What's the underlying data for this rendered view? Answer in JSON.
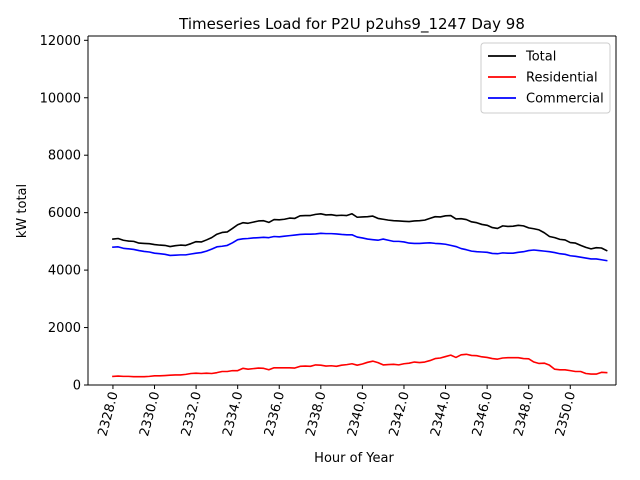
{
  "chart_data": {
    "type": "line",
    "title": "Timeseries Load for P2U p2uhs9_1247  Day 98",
    "xlabel": "Hour of Year",
    "ylabel": "kW total",
    "xlim": [
      2326.8,
      2352.2
    ],
    "ylim": [
      0,
      12150
    ],
    "xticks": [
      2328,
      2330,
      2332,
      2334,
      2336,
      2338,
      2340,
      2342,
      2344,
      2346,
      2348,
      2350
    ],
    "xtick_labels": [
      "2328.0",
      "2330.0",
      "2332.0",
      "2334.0",
      "2336.0",
      "2338.0",
      "2340.0",
      "2342.0",
      "2344.0",
      "2346.0",
      "2348.0",
      "2350.0"
    ],
    "yticks": [
      0,
      2000,
      4000,
      6000,
      8000,
      10000,
      12000
    ],
    "ytick_labels": [
      "0",
      "2000",
      "4000",
      "6000",
      "8000",
      "10000",
      "12000"
    ],
    "legend_position": "top-right",
    "x": [
      2328.0,
      2328.25,
      2328.5,
      2328.75,
      2329.0,
      2329.25,
      2329.5,
      2329.75,
      2330.0,
      2330.25,
      2330.5,
      2330.75,
      2331.0,
      2331.25,
      2331.5,
      2331.75,
      2332.0,
      2332.25,
      2332.5,
      2332.75,
      2333.0,
      2333.25,
      2333.5,
      2333.75,
      2334.0,
      2334.25,
      2334.5,
      2334.75,
      2335.0,
      2335.25,
      2335.5,
      2335.75,
      2336.0,
      2336.25,
      2336.5,
      2336.75,
      2337.0,
      2337.25,
      2337.5,
      2337.75,
      2338.0,
      2338.25,
      2338.5,
      2338.75,
      2339.0,
      2339.25,
      2339.5,
      2339.75,
      2340.0,
      2340.25,
      2340.5,
      2340.75,
      2341.0,
      2341.25,
      2341.5,
      2341.75,
      2342.0,
      2342.25,
      2342.5,
      2342.75,
      2343.0,
      2343.25,
      2343.5,
      2343.75,
      2344.0,
      2344.25,
      2344.5,
      2344.75,
      2345.0,
      2345.25,
      2345.5,
      2345.75,
      2346.0,
      2346.25,
      2346.5,
      2346.75,
      2347.0,
      2347.25,
      2347.5,
      2347.75,
      2348.0,
      2348.25,
      2348.5,
      2348.75,
      2349.0,
      2349.25,
      2349.5,
      2349.75,
      2350.0,
      2350.25,
      2350.5,
      2350.75,
      2351.0,
      2351.25,
      2351.5,
      2351.75
    ],
    "series": [
      {
        "name": "Total",
        "color": "#000000",
        "values": [
          5080,
          5100,
          5040,
          5010,
          5000,
          4940,
          4930,
          4920,
          4890,
          4870,
          4860,
          4820,
          4850,
          4870,
          4860,
          4920,
          4990,
          4980,
          5050,
          5130,
          5250,
          5310,
          5330,
          5450,
          5580,
          5650,
          5630,
          5670,
          5710,
          5720,
          5660,
          5760,
          5750,
          5770,
          5810,
          5800,
          5890,
          5900,
          5900,
          5940,
          5960,
          5920,
          5930,
          5900,
          5910,
          5900,
          5960,
          5840,
          5850,
          5860,
          5880,
          5800,
          5770,
          5740,
          5720,
          5710,
          5700,
          5690,
          5710,
          5720,
          5740,
          5800,
          5860,
          5850,
          5890,
          5900,
          5780,
          5790,
          5760,
          5680,
          5650,
          5590,
          5560,
          5480,
          5450,
          5540,
          5520,
          5530,
          5560,
          5540,
          5470,
          5440,
          5400,
          5300,
          5170,
          5130,
          5070,
          5050,
          4960,
          4940,
          4860,
          4790,
          4740,
          4780,
          4770,
          4680
        ]
      },
      {
        "name": "Residential",
        "color": "#ff0000",
        "values": [
          300,
          310,
          300,
          300,
          290,
          290,
          290,
          300,
          320,
          320,
          330,
          340,
          350,
          350,
          370,
          400,
          410,
          400,
          410,
          400,
          430,
          470,
          470,
          500,
          500,
          580,
          550,
          570,
          590,
          580,
          530,
          600,
          600,
          600,
          600,
          590,
          650,
          660,
          650,
          700,
          690,
          660,
          670,
          650,
          690,
          710,
          740,
          690,
          730,
          790,
          830,
          780,
          700,
          710,
          720,
          700,
          740,
          760,
          800,
          780,
          800,
          850,
          920,
          940,
          990,
          1040,
          960,
          1050,
          1070,
          1030,
          1020,
          980,
          960,
          920,
          900,
          940,
          950,
          950,
          950,
          920,
          910,
          800,
          750,
          760,
          690,
          550,
          530,
          530,
          500,
          470,
          470,
          400,
          380,
          380,
          440,
          430
        ]
      },
      {
        "name": "Commercial",
        "color": "#0000ff",
        "values": [
          4800,
          4810,
          4760,
          4740,
          4720,
          4680,
          4650,
          4630,
          4590,
          4570,
          4550,
          4510,
          4520,
          4530,
          4530,
          4560,
          4590,
          4610,
          4660,
          4730,
          4810,
          4830,
          4860,
          4950,
          5060,
          5090,
          5100,
          5120,
          5130,
          5140,
          5130,
          5170,
          5160,
          5180,
          5200,
          5220,
          5240,
          5250,
          5250,
          5260,
          5280,
          5270,
          5270,
          5260,
          5240,
          5230,
          5230,
          5150,
          5120,
          5080,
          5060,
          5040,
          5080,
          5040,
          5000,
          5000,
          4980,
          4940,
          4930,
          4930,
          4940,
          4950,
          4930,
          4920,
          4900,
          4860,
          4820,
          4750,
          4710,
          4660,
          4640,
          4630,
          4620,
          4580,
          4570,
          4600,
          4590,
          4590,
          4620,
          4640,
          4680,
          4700,
          4680,
          4660,
          4640,
          4610,
          4570,
          4550,
          4500,
          4480,
          4450,
          4420,
          4390,
          4390,
          4360,
          4330
        ]
      }
    ]
  }
}
